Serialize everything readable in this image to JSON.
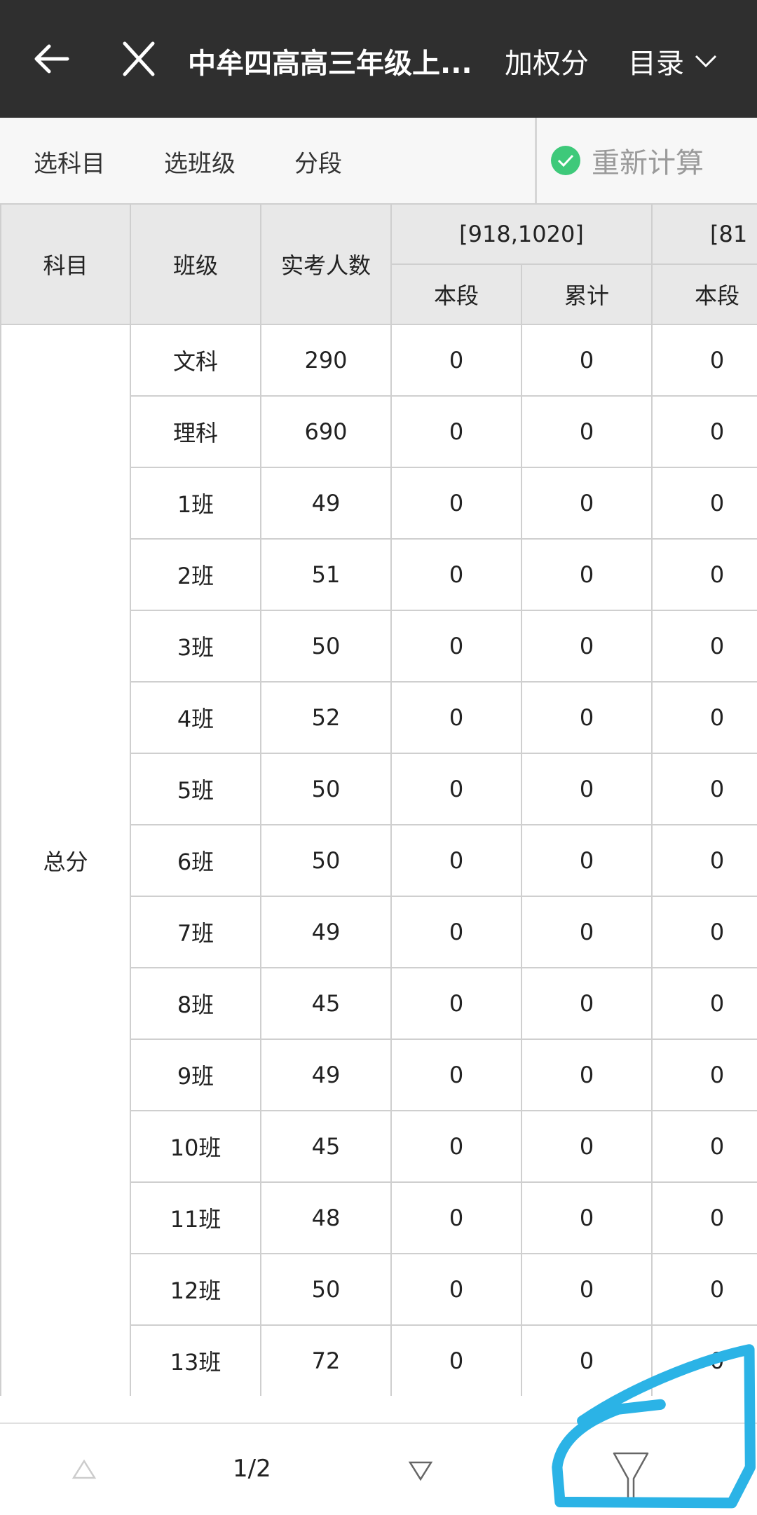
{
  "header": {
    "back_icon": "arrow-left-icon",
    "close_icon": "close-icon",
    "title": "中牟四高高三年级上...",
    "weighted_label": "加权分",
    "catalog_label": "目录"
  },
  "toolbar": {
    "select_subject": "选科目",
    "select_class": "选班级",
    "segment": "分段",
    "recalculate": "重新计算"
  },
  "table": {
    "headers": {
      "subject": "科目",
      "class": "班级",
      "count": "实考人数",
      "groups": [
        "[918,1020]",
        "[81"
      ],
      "sub": [
        "本段",
        "累计",
        "本段"
      ]
    },
    "subject_value": "总分",
    "rows": [
      {
        "class": "文科",
        "count": "290",
        "v": [
          "0",
          "0",
          "0"
        ]
      },
      {
        "class": "理科",
        "count": "690",
        "v": [
          "0",
          "0",
          "0"
        ]
      },
      {
        "class": "1班",
        "count": "49",
        "v": [
          "0",
          "0",
          "0"
        ]
      },
      {
        "class": "2班",
        "count": "51",
        "v": [
          "0",
          "0",
          "0"
        ]
      },
      {
        "class": "3班",
        "count": "50",
        "v": [
          "0",
          "0",
          "0"
        ]
      },
      {
        "class": "4班",
        "count": "52",
        "v": [
          "0",
          "0",
          "0"
        ]
      },
      {
        "class": "5班",
        "count": "50",
        "v": [
          "0",
          "0",
          "0"
        ]
      },
      {
        "class": "6班",
        "count": "50",
        "v": [
          "0",
          "0",
          "0"
        ]
      },
      {
        "class": "7班",
        "count": "49",
        "v": [
          "0",
          "0",
          "0"
        ]
      },
      {
        "class": "8班",
        "count": "45",
        "v": [
          "0",
          "0",
          "0"
        ]
      },
      {
        "class": "9班",
        "count": "49",
        "v": [
          "0",
          "0",
          "0"
        ]
      },
      {
        "class": "10班",
        "count": "45",
        "v": [
          "0",
          "0",
          "0"
        ]
      },
      {
        "class": "11班",
        "count": "48",
        "v": [
          "0",
          "0",
          "0"
        ]
      },
      {
        "class": "12班",
        "count": "50",
        "v": [
          "0",
          "0",
          "0"
        ]
      },
      {
        "class": "13班",
        "count": "72",
        "v": [
          "0",
          "0",
          "0"
        ]
      }
    ]
  },
  "footer": {
    "page": "1/2",
    "prev_icon": "triangle-up-icon",
    "next_icon": "triangle-down-icon",
    "filter_icon": "filter-icon"
  },
  "colors": {
    "topbar": "#2f2f2f",
    "check": "#3ec97a",
    "annotation": "#2bb3e6"
  }
}
